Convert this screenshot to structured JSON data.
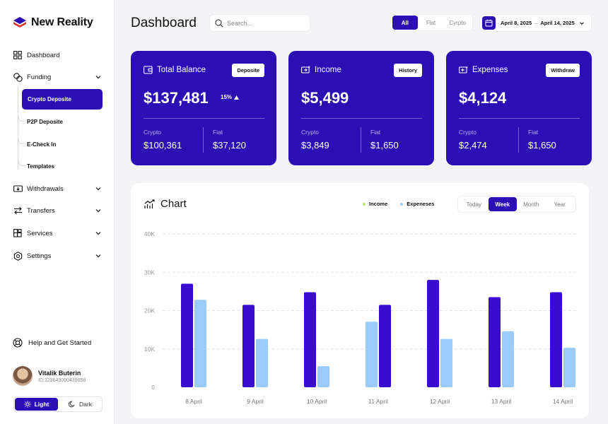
{
  "app": {
    "name": "New Reality"
  },
  "sidebar": {
    "items": [
      {
        "label": "Dashboard",
        "icon": "dashboard-icon"
      },
      {
        "label": "Funding",
        "icon": "coins-icon"
      },
      {
        "label": "Withdrawals",
        "icon": "withdraw-icon"
      },
      {
        "label": "Transfers",
        "icon": "transfer-icon"
      },
      {
        "label": "Services",
        "icon": "services-icon"
      },
      {
        "label": "Settings",
        "icon": "settings-icon"
      }
    ],
    "funding_sub": [
      "Crypto Deposite",
      "P2P Deposite",
      "E-Check In",
      "Templates"
    ],
    "help": "Help and Get Started",
    "user": {
      "name": "Vitalik Buterin",
      "id": "ID:123643000439058"
    },
    "theme": {
      "light": "Light",
      "dark": "Dark"
    }
  },
  "header": {
    "title": "Dashboard",
    "search_placeholder": "Search...",
    "filters": [
      "All",
      "Fiat",
      "Cyrpto"
    ],
    "date_from": "April 8, 2025",
    "date_sep": "–",
    "date_to": "April 14, 2025"
  },
  "cards": [
    {
      "title": "Total Balance",
      "button": "Deposite",
      "amount": "$137,481",
      "change": "15%",
      "left_label": "Crypto",
      "left_value": "$100,361",
      "right_label": "Fiat",
      "right_value": "$37,120"
    },
    {
      "title": "Income",
      "button": "History",
      "amount": "$5,499",
      "left_label": "Crypto",
      "left_value": "$3,849",
      "right_label": "Fiat",
      "right_value": "$1,650"
    },
    {
      "title": "Expenses",
      "button": "Withdraw",
      "amount": "$4,124",
      "left_label": "Crypto",
      "left_value": "$2,474",
      "right_label": "Fiat",
      "right_value": "$1,650"
    }
  ],
  "chart_panel": {
    "title": "Chart",
    "legend": [
      "Income",
      "Expeneses"
    ],
    "ranges": [
      "Today",
      "Week",
      "Month",
      "Year"
    ],
    "active_range": "Week"
  },
  "colors": {
    "accent": "#2c0fb4",
    "income": "#3a0ccf",
    "expenses": "#9bcbf8",
    "income_dot": "#b5e86a",
    "expenses_dot": "#9bcbf8"
  },
  "chart_data": {
    "type": "bar",
    "categories": [
      "8 April",
      "9 April",
      "10 April",
      "11 April",
      "12 April",
      "13 April",
      "14 April"
    ],
    "series": [
      {
        "name": "Income",
        "values": [
          27000,
          21500,
          24800,
          21500,
          28000,
          23500,
          24800
        ]
      },
      {
        "name": "Expeneses",
        "values": [
          22800,
          12600,
          5500,
          17100,
          12600,
          14600,
          10300
        ]
      }
    ],
    "ylim": [
      0,
      40000
    ],
    "yticks": [
      "0",
      "10K",
      "20K",
      "30K",
      "40K"
    ],
    "grid": true
  }
}
